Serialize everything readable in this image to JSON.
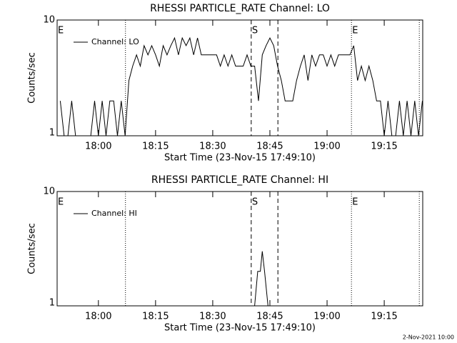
{
  "chart_data": [
    {
      "type": "line",
      "title": "RHESSI PARTICLE_RATE Channel: LO",
      "x_label": "Start Time (23-Nov-15 17:49:10)",
      "y_label": "Counts/sec",
      "log_y": true,
      "xlim": [
        1069.17,
        1165.1
      ],
      "ylim": [
        1,
        10
      ],
      "yticks": [
        1,
        10
      ],
      "xticks": [
        {
          "value": 1080,
          "label": "18:00"
        },
        {
          "value": 1095,
          "label": "18:15"
        },
        {
          "value": 1110,
          "label": "18:30"
        },
        {
          "value": 1125,
          "label": "18:45"
        },
        {
          "value": 1140,
          "label": "19:00"
        },
        {
          "value": 1155,
          "label": "19:15"
        }
      ],
      "annotations": [
        {
          "x": 1069.17,
          "label": "E",
          "style": "none"
        },
        {
          "x": 1087.1,
          "style": "dotted"
        },
        {
          "x": 1120.1,
          "label": "S",
          "style": "dashed"
        },
        {
          "x": 1127.1,
          "style": "dashed"
        },
        {
          "x": 1146.4,
          "label": "E",
          "style": "dotted"
        },
        {
          "x": 1164.2,
          "style": "dotted"
        }
      ],
      "series": [
        {
          "name": "Channel: LO",
          "color": "#000000",
          "x": [
            1070,
            1071,
            1072,
            1073,
            1074,
            1075,
            1076,
            1077,
            1078,
            1079,
            1080,
            1081,
            1082,
            1083,
            1084,
            1085,
            1086,
            1087,
            1088,
            1089,
            1090,
            1091,
            1092,
            1093,
            1094,
            1095,
            1096,
            1097,
            1098,
            1099,
            1100,
            1101,
            1102,
            1103,
            1104,
            1105,
            1106,
            1107,
            1108,
            1109,
            1110,
            1111,
            1112,
            1113,
            1114,
            1115,
            1116,
            1117,
            1118,
            1119,
            1120,
            1121,
            1122,
            1123,
            1124,
            1125,
            1126,
            1127,
            1128,
            1129,
            1130,
            1131,
            1132,
            1133,
            1134,
            1135,
            1136,
            1137,
            1138,
            1139,
            1140,
            1141,
            1142,
            1143,
            1144,
            1145,
            1146,
            1147,
            1148,
            1149,
            1150,
            1151,
            1152,
            1153,
            1154,
            1155,
            1156,
            1157,
            1158,
            1159,
            1160,
            1161,
            1162,
            1163,
            1164,
            1165
          ],
          "values": [
            2,
            1,
            1,
            2,
            1,
            1,
            1,
            1,
            1,
            2,
            1,
            2,
            1,
            2,
            2,
            1,
            2,
            1,
            3,
            4,
            5,
            4,
            6,
            5,
            6,
            5,
            4,
            6,
            5,
            6,
            7,
            5,
            7,
            6,
            7,
            5,
            7,
            5,
            5,
            5,
            5,
            5,
            4,
            5,
            4,
            5,
            4,
            4,
            4,
            5,
            4,
            4,
            2,
            5,
            6,
            7,
            6,
            4,
            3,
            2,
            2,
            2,
            3,
            4,
            5,
            3,
            5,
            4,
            5,
            5,
            4,
            5,
            4,
            5,
            5,
            5,
            5,
            6,
            3,
            4,
            3,
            4,
            3,
            2,
            2,
            1,
            2,
            1,
            1,
            2,
            1,
            2,
            1,
            2,
            1,
            2
          ]
        }
      ]
    },
    {
      "type": "line",
      "title": "RHESSI PARTICLE_RATE Channel: HI",
      "x_label": "Start Time (23-Nov-15 17:49:10)",
      "y_label": "Counts/sec",
      "log_y": true,
      "xlim": [
        1069.17,
        1165.1
      ],
      "ylim": [
        1,
        10
      ],
      "yticks": [
        1,
        10
      ],
      "xticks": [
        {
          "value": 1080,
          "label": "18:00"
        },
        {
          "value": 1095,
          "label": "18:15"
        },
        {
          "value": 1110,
          "label": "18:30"
        },
        {
          "value": 1125,
          "label": "18:45"
        },
        {
          "value": 1140,
          "label": "19:00"
        },
        {
          "value": 1155,
          "label": "19:15"
        }
      ],
      "annotations": [
        {
          "x": 1069.17,
          "label": "E",
          "style": "none"
        },
        {
          "x": 1087.1,
          "style": "dotted"
        },
        {
          "x": 1120.1,
          "label": "S",
          "style": "dashed"
        },
        {
          "x": 1127.1,
          "style": "dashed"
        },
        {
          "x": 1146.4,
          "label": "E",
          "style": "dotted"
        },
        {
          "x": 1164.2,
          "style": "dotted"
        }
      ],
      "series": [
        {
          "name": "Channel: HI",
          "color": "#000000",
          "x": [
            1121,
            1121.8,
            1122.5,
            1123,
            1123.6,
            1124.5
          ],
          "values": [
            1,
            2,
            2,
            3,
            2,
            1
          ]
        }
      ]
    }
  ],
  "footer": "2-Nov-2021 10:00"
}
